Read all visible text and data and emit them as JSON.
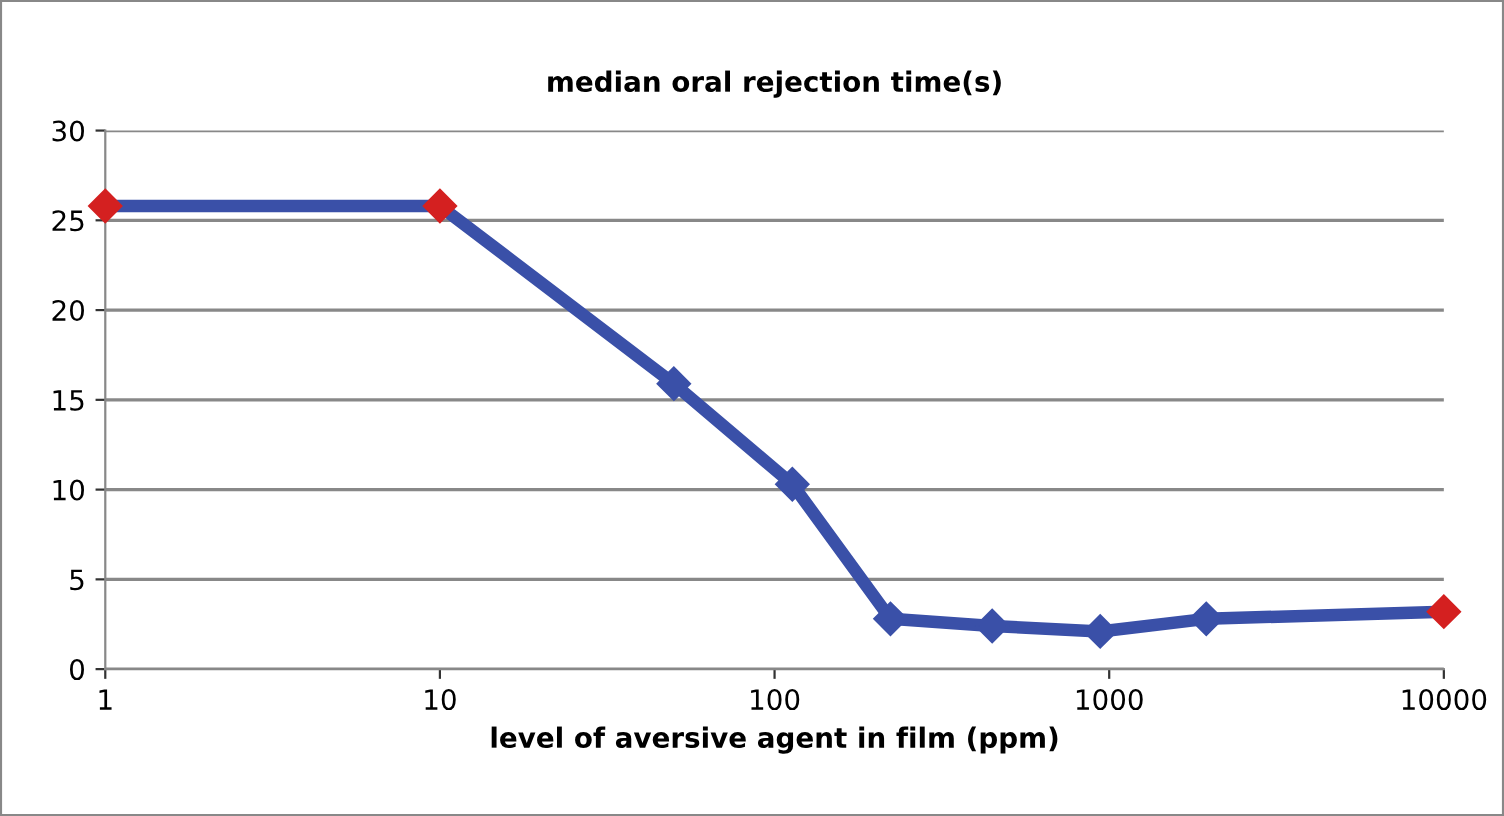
{
  "chart_data": {
    "type": "line",
    "title": "median oral rejection time(s)",
    "xlabel": "level of aversive agent in film (ppm)",
    "log": "x",
    "x": [
      1,
      10,
      50,
      113,
      222,
      447,
      940,
      1950,
      10000
    ],
    "series": [
      {
        "color": "#3a50a8",
        "colors": [
          "#d42020",
          "#d42020",
          "#3a50a8",
          "#3a50a8",
          "#3a50a8",
          "#3a50a8",
          "#3a50a8",
          "#3a50a8",
          "#d42020"
        ],
        "values": [
          25.8,
          25.8,
          15.9,
          10.3,
          2.8,
          2.4,
          2.1,
          2.8,
          3.2
        ]
      }
    ],
    "xlim": [
      1,
      10000
    ],
    "xticks": [
      1,
      10,
      100,
      1000,
      10000
    ],
    "ylim": [
      0,
      30
    ],
    "yticks": [
      0,
      5,
      10,
      15,
      20,
      25,
      30
    ],
    "grid": "y",
    "marker": "diamond",
    "line_style": "solid",
    "legend": false
  }
}
